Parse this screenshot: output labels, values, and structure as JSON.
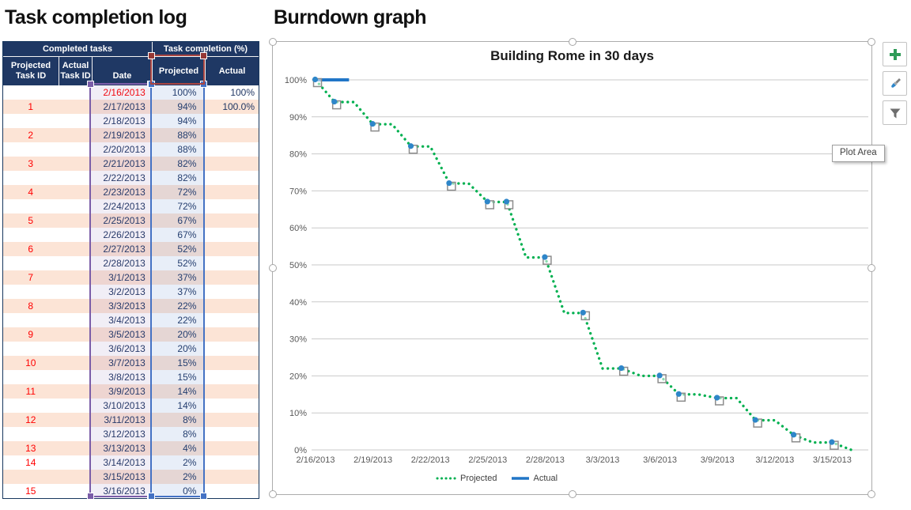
{
  "left_panel": {
    "title": "Task completion log",
    "table": {
      "group_headers": [
        "Completed tasks",
        "Task completion (%)"
      ],
      "sub_headers": {
        "projected_line1": "Projected",
        "projected_line2": "Task ID",
        "actual_line1": "Actual",
        "actual_line2": "Task ID",
        "date": "Date",
        "pct_projected": "Projected",
        "pct_actual": "Actual"
      },
      "rows": [
        {
          "task_id": "",
          "date": "2/16/2013",
          "projected": "100%",
          "actual": "100%",
          "date_red": true
        },
        {
          "task_id": "1",
          "date": "2/17/2013",
          "projected": "94%",
          "actual": "100.0%",
          "date_red": false
        },
        {
          "task_id": "",
          "date": "2/18/2013",
          "projected": "94%",
          "actual": "",
          "date_red": false
        },
        {
          "task_id": "2",
          "date": "2/19/2013",
          "projected": "88%",
          "actual": "",
          "date_red": false
        },
        {
          "task_id": "",
          "date": "2/20/2013",
          "projected": "88%",
          "actual": "",
          "date_red": false
        },
        {
          "task_id": "3",
          "date": "2/21/2013",
          "projected": "82%",
          "actual": "",
          "date_red": false
        },
        {
          "task_id": "",
          "date": "2/22/2013",
          "projected": "82%",
          "actual": "",
          "date_red": false
        },
        {
          "task_id": "4",
          "date": "2/23/2013",
          "projected": "72%",
          "actual": "",
          "date_red": false
        },
        {
          "task_id": "",
          "date": "2/24/2013",
          "projected": "72%",
          "actual": "",
          "date_red": false
        },
        {
          "task_id": "5",
          "date": "2/25/2013",
          "projected": "67%",
          "actual": "",
          "date_red": false
        },
        {
          "task_id": "",
          "date": "2/26/2013",
          "projected": "67%",
          "actual": "",
          "date_red": false
        },
        {
          "task_id": "6",
          "date": "2/27/2013",
          "projected": "52%",
          "actual": "",
          "date_red": false
        },
        {
          "task_id": "",
          "date": "2/28/2013",
          "projected": "52%",
          "actual": "",
          "date_red": false
        },
        {
          "task_id": "7",
          "date": "3/1/2013",
          "projected": "37%",
          "actual": "",
          "date_red": false
        },
        {
          "task_id": "",
          "date": "3/2/2013",
          "projected": "37%",
          "actual": "",
          "date_red": false
        },
        {
          "task_id": "8",
          "date": "3/3/2013",
          "projected": "22%",
          "actual": "",
          "date_red": false
        },
        {
          "task_id": "",
          "date": "3/4/2013",
          "projected": "22%",
          "actual": "",
          "date_red": false
        },
        {
          "task_id": "9",
          "date": "3/5/2013",
          "projected": "20%",
          "actual": "",
          "date_red": false
        },
        {
          "task_id": "",
          "date": "3/6/2013",
          "projected": "20%",
          "actual": "",
          "date_red": false
        },
        {
          "task_id": "10",
          "date": "3/7/2013",
          "projected": "15%",
          "actual": "",
          "date_red": false
        },
        {
          "task_id": "",
          "date": "3/8/2013",
          "projected": "15%",
          "actual": "",
          "date_red": false
        },
        {
          "task_id": "11",
          "date": "3/9/2013",
          "projected": "14%",
          "actual": "",
          "date_red": false
        },
        {
          "task_id": "",
          "date": "3/10/2013",
          "projected": "14%",
          "actual": "",
          "date_red": false
        },
        {
          "task_id": "12",
          "date": "3/11/2013",
          "projected": "8%",
          "actual": "",
          "date_red": false
        },
        {
          "task_id": "",
          "date": "3/12/2013",
          "projected": "8%",
          "actual": "",
          "date_red": false
        },
        {
          "task_id": "13",
          "date": "3/13/2013",
          "projected": "4%",
          "actual": "",
          "date_red": false
        },
        {
          "task_id": "14",
          "date": "3/14/2013",
          "projected": "2%",
          "actual": "",
          "date_red": false
        },
        {
          "task_id": "",
          "date": "3/15/2013",
          "projected": "2%",
          "actual": "",
          "date_red": false
        },
        {
          "task_id": "15",
          "date": "3/16/2013",
          "projected": "0%",
          "actual": "",
          "date_red": false
        }
      ],
      "selection_colors": {
        "date_range": "#7A5DA8",
        "projected_range": "#4472C4",
        "header_range": "#A84441"
      }
    }
  },
  "chart_panel": {
    "title": "Burndown graph",
    "plot_tooltip": "Plot Area",
    "toolbar": {
      "add_icon_color": "#2E9B57",
      "brush_tip_color": "#2E86C9",
      "funnel_color": "#6E6E6E"
    }
  },
  "chart_data": {
    "type": "line",
    "title": "Building Rome in 30 days",
    "x": [
      "2/16/2013",
      "2/17/2013",
      "2/18/2013",
      "2/19/2013",
      "2/20/2013",
      "2/21/2013",
      "2/22/2013",
      "2/23/2013",
      "2/24/2013",
      "2/25/2013",
      "2/26/2013",
      "2/27/2013",
      "2/28/2013",
      "3/1/2013",
      "3/2/2013",
      "3/3/2013",
      "3/4/2013",
      "3/5/2013",
      "3/6/2013",
      "3/7/2013",
      "3/8/2013",
      "3/9/2013",
      "3/10/2013",
      "3/11/2013",
      "3/12/2013",
      "3/13/2013",
      "3/14/2013",
      "3/15/2013",
      "3/16/2013"
    ],
    "x_tick_labels": [
      "2/16/2013",
      "2/19/2013",
      "2/22/2013",
      "2/25/2013",
      "2/28/2013",
      "3/3/2013",
      "3/6/2013",
      "3/9/2013",
      "3/12/2013",
      "3/15/2013"
    ],
    "y_tick_labels": [
      "0%",
      "10%",
      "20%",
      "30%",
      "40%",
      "50%",
      "60%",
      "70%",
      "80%",
      "90%",
      "100%"
    ],
    "ylim": [
      0,
      100
    ],
    "grid": true,
    "legend_position": "bottom",
    "series": [
      {
        "name": "Projected",
        "color": "#00B050",
        "style": "dotted",
        "values": [
          100,
          94,
          94,
          88,
          88,
          82,
          82,
          72,
          72,
          67,
          67,
          52,
          52,
          37,
          37,
          22,
          22,
          20,
          20,
          15,
          15,
          14,
          14,
          8,
          8,
          4,
          2,
          2,
          0
        ]
      },
      {
        "name": "Actual",
        "color": "#2176C7",
        "style": "solid",
        "values": [
          100,
          100
        ]
      }
    ],
    "marker_point_indices": [
      0,
      1,
      3,
      5,
      7,
      9,
      10,
      12,
      14,
      16,
      18,
      19,
      21,
      23,
      25,
      27
    ],
    "marker_colors": {
      "square_stroke": "#8C8C8C",
      "dot_fill": "#2E86C9"
    },
    "gridline_color": "#C9C9C9"
  }
}
